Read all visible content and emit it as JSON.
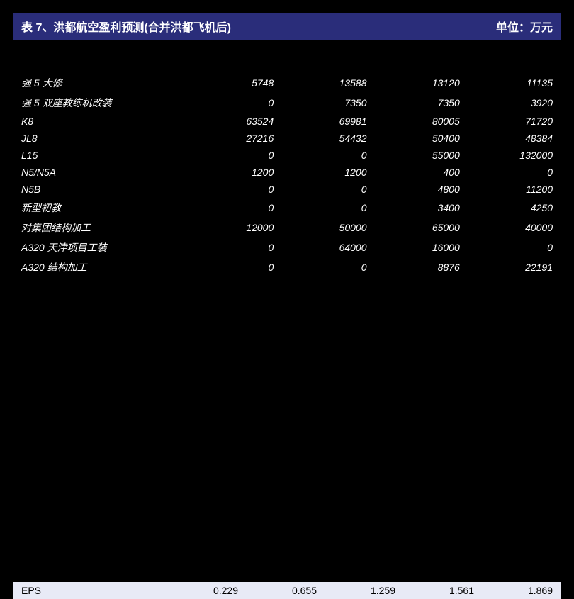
{
  "header": {
    "title": "表 7、洪都航空盈利预测(合并洪都飞机后)",
    "unit": "单位：万元"
  },
  "table": {
    "rows": [
      {
        "label": "强 5 大修",
        "values": [
          "5748",
          "13588",
          "13120",
          "11135"
        ]
      },
      {
        "label": "强 5 双座教练机改装",
        "values": [
          "0",
          "7350",
          "7350",
          "3920"
        ]
      },
      {
        "label": "K8",
        "values": [
          "63524",
          "69981",
          "80005",
          "71720"
        ]
      },
      {
        "label": "JL8",
        "values": [
          "27216",
          "54432",
          "50400",
          "48384"
        ]
      },
      {
        "label": "L15",
        "values": [
          "0",
          "0",
          "55000",
          "132000"
        ]
      },
      {
        "label": "N5/N5A",
        "values": [
          "1200",
          "1200",
          "400",
          "0"
        ]
      },
      {
        "label": "N5B",
        "values": [
          "0",
          "0",
          "4800",
          "11200"
        ]
      },
      {
        "label": "新型初教",
        "values": [
          "0",
          "0",
          "3400",
          "4250"
        ]
      },
      {
        "label": "对集团结构加工",
        "values": [
          "12000",
          "50000",
          "65000",
          "40000"
        ]
      },
      {
        "label": "A320 天津项目工装",
        "values": [
          "0",
          "64000",
          "16000",
          "0"
        ]
      },
      {
        "label": "A320 结构加工",
        "values": [
          "0",
          "0",
          "8876",
          "22191"
        ]
      }
    ]
  },
  "eps": {
    "label": "EPS",
    "values": [
      "0.229",
      "0.655",
      "1.259",
      "1.561",
      "1.869"
    ]
  },
  "colors": {
    "header_bg": "#2a2d7a",
    "page_bg": "#000000",
    "text": "#ffffff",
    "eps_bg": "#e8eaf6",
    "eps_text": "#000000",
    "divider": "#4a4d9a"
  }
}
